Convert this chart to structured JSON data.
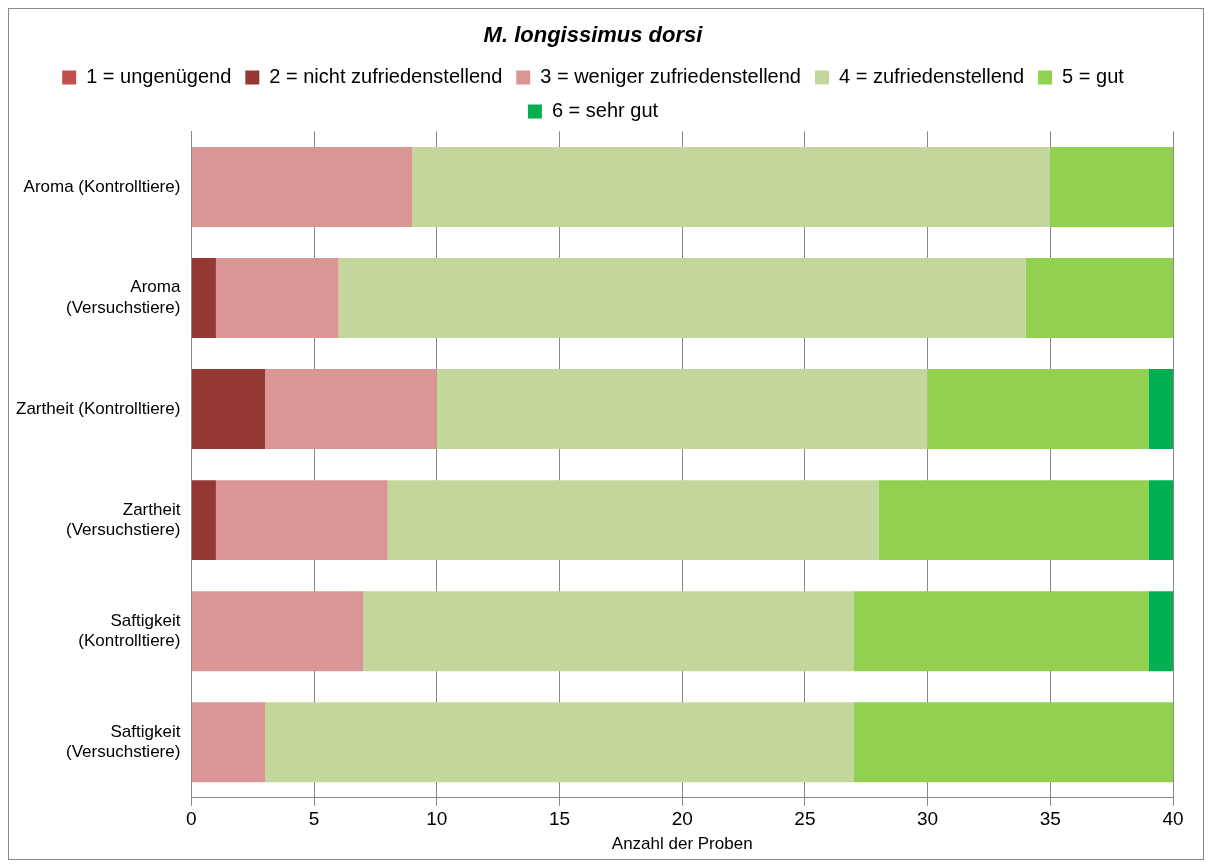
{
  "chart_data": {
    "type": "bar",
    "orientation": "horizontal",
    "stacked": true,
    "title": "M. longissimus dorsi",
    "xlabel": "Anzahl der Proben",
    "categories": [
      "Aroma (Kontrolltiere)",
      "Aroma\n(Versuchstiere)",
      "Zartheit (Kontrolltiere)",
      "Zartheit\n(Versuchstiere)",
      "Saftigkeit\n(Kontrolltiere)",
      "Saftigkeit\n(Versuchstiere)"
    ],
    "series": [
      {
        "name": "1 = ungenügend",
        "color": "#c0504d",
        "values": [
          0,
          0,
          0,
          0,
          0,
          0
        ]
      },
      {
        "name": "2 = nicht zufriedenstellend",
        "color": "#953735",
        "values": [
          0,
          1,
          3,
          1,
          0,
          0
        ]
      },
      {
        "name": "3 = weniger zufriedenstellend",
        "color": "#d99694",
        "values": [
          9,
          5,
          7,
          7,
          7,
          3
        ]
      },
      {
        "name": "4 = zufriedenstellend",
        "color": "#c3d69b",
        "values": [
          26,
          28,
          20,
          20,
          20,
          24
        ]
      },
      {
        "name": "5 = gut",
        "color": "#92d050",
        "values": [
          5,
          6,
          9,
          11,
          12,
          13
        ]
      },
      {
        "name": "6 = sehr gut",
        "color": "#00b050",
        "values": [
          0,
          0,
          1,
          1,
          1,
          0
        ]
      }
    ],
    "xlim": [
      0,
      40
    ],
    "xticks": [
      0,
      5,
      10,
      15,
      20,
      25,
      30,
      35,
      40
    ],
    "grid": "x",
    "legend": "top"
  }
}
